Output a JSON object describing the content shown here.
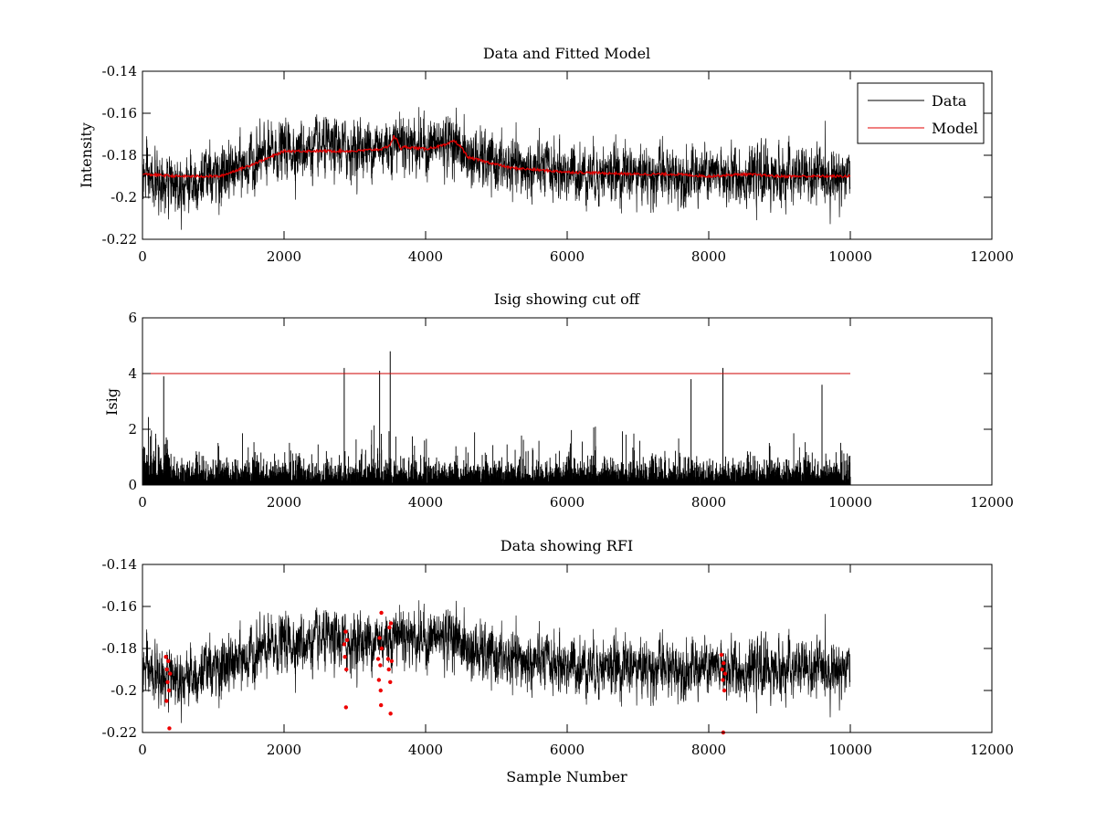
{
  "figure": {
    "background": "#ffffff",
    "data_color": "#000000",
    "model_color": "#e00000",
    "rfi_color": "#ee0000",
    "threshold_color": "#cc0000"
  },
  "chart_data": [
    {
      "type": "line",
      "title": "Data and Fitted Model",
      "xlabel": "",
      "ylabel": "Intensity",
      "xlim": [
        0,
        12000
      ],
      "ylim": [
        -0.22,
        -0.14
      ],
      "xticks": [
        0,
        2000,
        4000,
        6000,
        8000,
        10000,
        12000
      ],
      "xtick_labels": [
        "0",
        "2000",
        "4000",
        "6000",
        "8000",
        "10000",
        "12000"
      ],
      "yticks": [
        -0.14,
        -0.16,
        -0.18,
        -0.2,
        -0.22
      ],
      "ytick_labels": [
        "-0.14",
        "-0.16",
        "-0.18",
        "-0.2",
        "-0.22"
      ],
      "legend": {
        "placement": "top-right",
        "entries": [
          "Data",
          "Model"
        ]
      },
      "series": [
        {
          "name": "Data",
          "kind": "noisy",
          "n_samples": 10000,
          "baseline_x": [
            0,
            300,
            1000,
            1100,
            1800,
            2000,
            2500,
            3000,
            3500,
            3600,
            4000,
            4400,
            4600,
            5200,
            6000,
            7000,
            8000,
            9000,
            10000
          ],
          "baseline_y": [
            -0.19,
            -0.195,
            -0.19,
            -0.19,
            -0.18,
            -0.177,
            -0.177,
            -0.177,
            -0.175,
            -0.172,
            -0.176,
            -0.173,
            -0.181,
            -0.186,
            -0.188,
            -0.189,
            -0.19,
            -0.19,
            -0.19
          ],
          "noise_amp": 0.0065,
          "clip": [
            -0.219,
            -0.156
          ]
        },
        {
          "name": "Model",
          "kind": "smooth",
          "x": [
            0,
            500,
            1000,
            1100,
            1500,
            1800,
            2000,
            2500,
            3000,
            3400,
            3500,
            3550,
            3600,
            3650,
            3700,
            4000,
            4300,
            4400,
            4500,
            4600,
            5200,
            6000,
            7000,
            7500,
            8000,
            8500,
            9000,
            10000
          ],
          "y": [
            -0.189,
            -0.19,
            -0.19,
            -0.19,
            -0.185,
            -0.181,
            -0.178,
            -0.178,
            -0.178,
            -0.177,
            -0.175,
            -0.171,
            -0.173,
            -0.177,
            -0.176,
            -0.177,
            -0.175,
            -0.173,
            -0.176,
            -0.181,
            -0.186,
            -0.188,
            -0.189,
            -0.189,
            -0.19,
            -0.189,
            -0.19,
            -0.19
          ]
        }
      ]
    },
    {
      "type": "line",
      "title": "Isig showing cut off",
      "xlabel": "",
      "ylabel": "Isig",
      "xlim": [
        0,
        12000
      ],
      "ylim": [
        0,
        6
      ],
      "xticks": [
        0,
        2000,
        4000,
        6000,
        8000,
        10000,
        12000
      ],
      "xtick_labels": [
        "0",
        "2000",
        "4000",
        "6000",
        "8000",
        "10000",
        "12000"
      ],
      "yticks": [
        0,
        2,
        4,
        6
      ],
      "ytick_labels": [
        "0",
        "2",
        "4",
        "6"
      ],
      "cutoff": 4,
      "series": [
        {
          "name": "Isig",
          "kind": "noisy-positive",
          "n_samples": 10000,
          "typical_max": 1.8,
          "spikes": [
            {
              "x": 300,
              "y": 3.9
            },
            {
              "x": 2850,
              "y": 4.2
            },
            {
              "x": 3350,
              "y": 4.1
            },
            {
              "x": 3500,
              "y": 4.8
            },
            {
              "x": 7750,
              "y": 3.8
            },
            {
              "x": 8200,
              "y": 4.2
            },
            {
              "x": 9600,
              "y": 3.6
            }
          ]
        },
        {
          "name": "Cut off",
          "kind": "threshold",
          "x": [
            0,
            10000
          ],
          "y": [
            4,
            4
          ]
        }
      ]
    },
    {
      "type": "line",
      "title": "Data showing RFI",
      "xlabel": "Sample Number",
      "ylabel": "",
      "xlim": [
        0,
        12000
      ],
      "ylim": [
        -0.22,
        -0.14
      ],
      "xticks": [
        0,
        2000,
        4000,
        6000,
        8000,
        10000,
        12000
      ],
      "xtick_labels": [
        "0",
        "2000",
        "4000",
        "6000",
        "8000",
        "10000",
        "12000"
      ],
      "yticks": [
        -0.14,
        -0.16,
        -0.18,
        -0.2,
        -0.22
      ],
      "ytick_labels": [
        "-0.14",
        "-0.16",
        "-0.18",
        "-0.2",
        "-0.22"
      ],
      "series": [
        {
          "name": "Data",
          "kind": "noisy",
          "same_as": "Data"
        },
        {
          "name": "RFI",
          "kind": "markers",
          "points": [
            {
              "x": 330,
              "y": -0.184
            },
            {
              "x": 345,
              "y": -0.19
            },
            {
              "x": 355,
              "y": -0.196
            },
            {
              "x": 365,
              "y": -0.186
            },
            {
              "x": 375,
              "y": -0.2
            },
            {
              "x": 380,
              "y": -0.218
            },
            {
              "x": 390,
              "y": -0.192
            },
            {
              "x": 340,
              "y": -0.205
            },
            {
              "x": 2850,
              "y": -0.178
            },
            {
              "x": 2860,
              "y": -0.184
            },
            {
              "x": 2870,
              "y": -0.172
            },
            {
              "x": 2880,
              "y": -0.19
            },
            {
              "x": 2875,
              "y": -0.208
            },
            {
              "x": 2890,
              "y": -0.176
            },
            {
              "x": 3330,
              "y": -0.185
            },
            {
              "x": 3340,
              "y": -0.195
            },
            {
              "x": 3350,
              "y": -0.175
            },
            {
              "x": 3360,
              "y": -0.188
            },
            {
              "x": 3365,
              "y": -0.2
            },
            {
              "x": 3370,
              "y": -0.207
            },
            {
              "x": 3375,
              "y": -0.163
            },
            {
              "x": 3380,
              "y": -0.18
            },
            {
              "x": 3470,
              "y": -0.185
            },
            {
              "x": 3480,
              "y": -0.19
            },
            {
              "x": 3490,
              "y": -0.17
            },
            {
              "x": 3500,
              "y": -0.196
            },
            {
              "x": 3505,
              "y": -0.211
            },
            {
              "x": 3510,
              "y": -0.168
            },
            {
              "x": 3520,
              "y": -0.186
            },
            {
              "x": 8180,
              "y": -0.183
            },
            {
              "x": 8190,
              "y": -0.19
            },
            {
              "x": 8200,
              "y": -0.195
            },
            {
              "x": 8205,
              "y": -0.22
            },
            {
              "x": 8210,
              "y": -0.187
            },
            {
              "x": 8220,
              "y": -0.2
            },
            {
              "x": 8230,
              "y": -0.192
            }
          ]
        }
      ]
    }
  ]
}
